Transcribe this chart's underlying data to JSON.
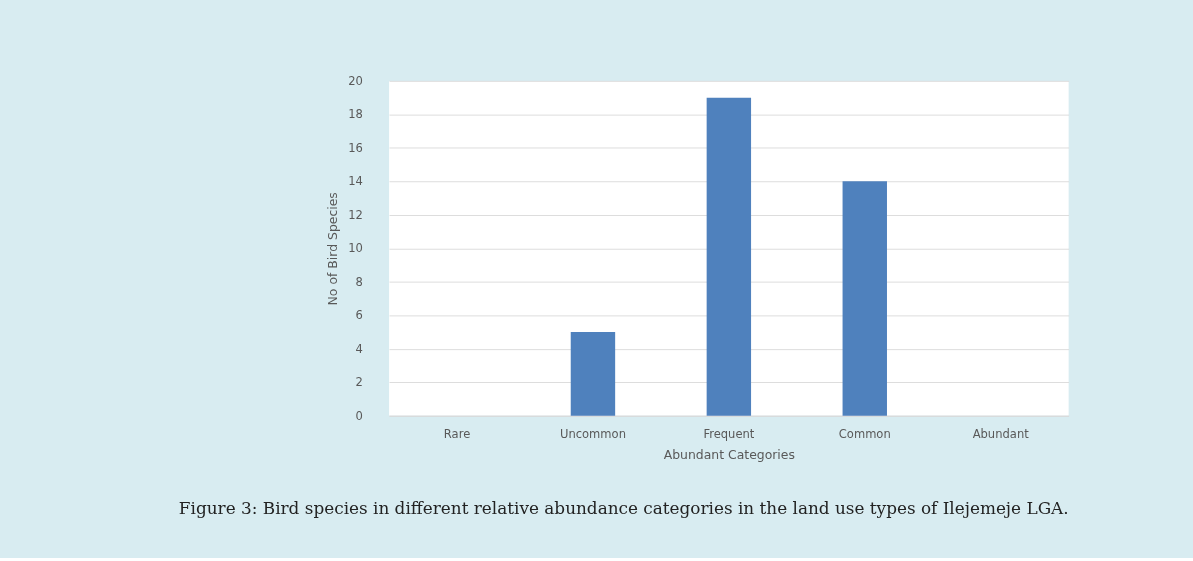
{
  "chart_data": {
    "type": "bar",
    "categories": [
      "Rare",
      "Uncommon",
      "Frequent",
      "Common",
      "Abundant"
    ],
    "values": [
      0,
      5,
      19,
      14,
      0
    ],
    "color": "#4f81bd",
    "xlabel": "Abundant Categories",
    "ylabel": "No of Bird Species",
    "ylim": [
      0,
      20
    ],
    "yticks": [
      0,
      2,
      4,
      6,
      8,
      10,
      12,
      14,
      16,
      18,
      20
    ],
    "grid": "y",
    "annotations": [
      "Figure 3: Bird species in different relative abundance categories in the land use types of Ilejemeje LGA."
    ]
  }
}
